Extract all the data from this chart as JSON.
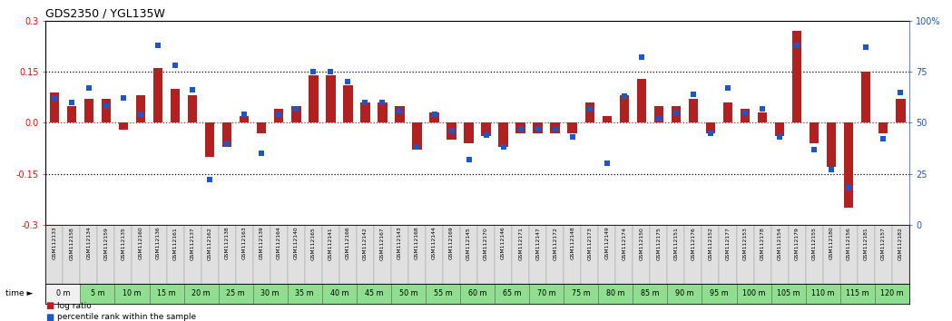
{
  "title": "GDS2350 / YGL135W",
  "samples": [
    "GSM112133",
    "GSM112158",
    "GSM112134",
    "GSM112159",
    "GSM112135",
    "GSM112160",
    "GSM112136",
    "GSM112161",
    "GSM112137",
    "GSM112162",
    "GSM112138",
    "GSM112163",
    "GSM112139",
    "GSM112164",
    "GSM112140",
    "GSM112165",
    "GSM112141",
    "GSM112166",
    "GSM112142",
    "GSM112167",
    "GSM112143",
    "GSM112168",
    "GSM112144",
    "GSM112169",
    "GSM112145",
    "GSM112170",
    "GSM112146",
    "GSM112171",
    "GSM112147",
    "GSM112172",
    "GSM112148",
    "GSM112173",
    "GSM112149",
    "GSM112174",
    "GSM112150",
    "GSM112175",
    "GSM112151",
    "GSM112176",
    "GSM112152",
    "GSM112177",
    "GSM112153",
    "GSM112178",
    "GSM112154",
    "GSM112179",
    "GSM112155",
    "GSM112180",
    "GSM112156",
    "GSM112181",
    "GSM112157",
    "GSM112182"
  ],
  "time_labels": [
    "0 m",
    "5 m",
    "10 m",
    "15 m",
    "20 m",
    "25 m",
    "30 m",
    "35 m",
    "40 m",
    "45 m",
    "50 m",
    "55 m",
    "60 m",
    "65 m",
    "70 m",
    "75 m",
    "80 m",
    "85 m",
    "90 m",
    "95 m",
    "100 m",
    "105 m",
    "110 m",
    "115 m",
    "120 m"
  ],
  "log_ratio": [
    0.09,
    0.05,
    0.07,
    0.07,
    -0.02,
    0.08,
    0.16,
    0.1,
    0.08,
    -0.1,
    -0.07,
    0.02,
    -0.03,
    0.04,
    0.05,
    0.14,
    0.14,
    0.11,
    0.06,
    0.06,
    0.05,
    -0.08,
    0.03,
    -0.05,
    -0.06,
    -0.04,
    -0.07,
    -0.03,
    -0.03,
    -0.03,
    -0.03,
    0.06,
    0.02,
    0.08,
    0.13,
    0.05,
    0.05,
    0.07,
    -0.03,
    0.06,
    0.04,
    0.03,
    -0.04,
    0.27,
    -0.06,
    -0.13,
    -0.25,
    0.15,
    -0.03,
    0.07
  ],
  "pct_rank": [
    62,
    60,
    67,
    58,
    62,
    54,
    88,
    78,
    66,
    22,
    40,
    54,
    35,
    54,
    57,
    75,
    75,
    70,
    60,
    60,
    56,
    38,
    54,
    46,
    32,
    44,
    38,
    47,
    47,
    47,
    43,
    57,
    30,
    63,
    82,
    52,
    55,
    64,
    45,
    67,
    55,
    57,
    43,
    88,
    37,
    27,
    18,
    87,
    42,
    65
  ],
  "bar_color": "#b32020",
  "dot_color": "#1a56cc",
  "bg_color_plot": "#ffffff",
  "ylim_left": [
    -0.3,
    0.3
  ],
  "yticks_left": [
    -0.3,
    -0.15,
    0.0,
    0.15,
    0.3
  ],
  "ylim_right": [
    0,
    100
  ],
  "yticks_right": [
    0,
    25,
    50,
    75,
    100
  ],
  "legend_bar_label": "log ratio",
  "legend_dot_label": "percentile rank within the sample",
  "sample_bg_color": "#e0e0e0",
  "sample_edge_color": "#999999",
  "time_bg_green": "#90df90",
  "time_bg_white": "#f0f0f0",
  "time_edge_color": "#666666",
  "time_label_fontsize": 5.8,
  "sample_label_fontsize": 4.3,
  "legend_fontsize": 6.5,
  "title_fontsize": 9,
  "axis_fontsize": 7
}
